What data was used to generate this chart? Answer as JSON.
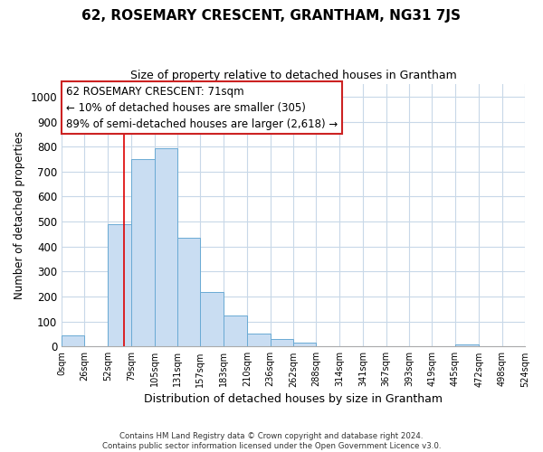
{
  "title": "62, ROSEMARY CRESCENT, GRANTHAM, NG31 7JS",
  "subtitle": "Size of property relative to detached houses in Grantham",
  "xlabel": "Distribution of detached houses by size in Grantham",
  "ylabel": "Number of detached properties",
  "bar_edges": [
    0,
    26,
    52,
    79,
    105,
    131,
    157,
    183,
    210,
    236,
    262,
    288,
    314,
    341,
    367,
    393,
    419,
    445,
    472,
    498,
    524
  ],
  "bar_heights": [
    45,
    0,
    490,
    750,
    795,
    435,
    220,
    125,
    50,
    30,
    15,
    0,
    0,
    0,
    0,
    0,
    0,
    10,
    0,
    0
  ],
  "bar_color": "#c9ddf2",
  "bar_edge_color": "#6aaad4",
  "vline_x": 71,
  "vline_color": "#dd0000",
  "ylim": [
    0,
    1050
  ],
  "yticks": [
    0,
    100,
    200,
    300,
    400,
    500,
    600,
    700,
    800,
    900,
    1000
  ],
  "annotation_title": "62 ROSEMARY CRESCENT: 71sqm",
  "annotation_line1": "← 10% of detached houses are smaller (305)",
  "annotation_line2": "89% of semi-detached houses are larger (2,618) →",
  "footer_line1": "Contains HM Land Registry data © Crown copyright and database right 2024.",
  "footer_line2": "Contains public sector information licensed under the Open Government Licence v3.0.",
  "background_color": "#ffffff",
  "grid_color": "#c8d8e8",
  "xtick_labels": [
    "0sqm",
    "26sqm",
    "52sqm",
    "79sqm",
    "105sqm",
    "131sqm",
    "157sqm",
    "183sqm",
    "210sqm",
    "236sqm",
    "262sqm",
    "288sqm",
    "314sqm",
    "341sqm",
    "367sqm",
    "393sqm",
    "419sqm",
    "445sqm",
    "472sqm",
    "498sqm",
    "524sqm"
  ]
}
